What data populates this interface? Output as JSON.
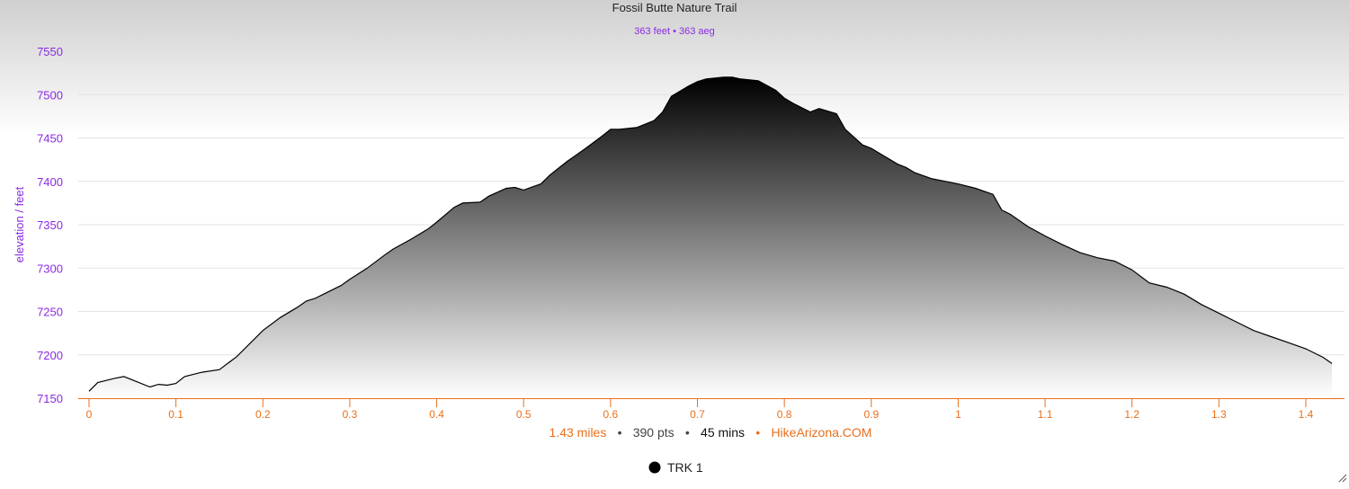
{
  "header": {
    "title": "Fossil Butte Nature Trail",
    "subtitle": "363 feet • 363 aeg"
  },
  "footer": {
    "distance": "1.43 miles",
    "sep1": "•",
    "points": "390 pts",
    "sep2": "•",
    "time": "45 mins",
    "sep3": "•",
    "site": "HikeArizona.COM"
  },
  "legend": {
    "label": "TRK 1"
  },
  "colors": {
    "accent_purple": "#8a2be2",
    "accent_orange": "#e8701c",
    "line": "#000000"
  },
  "chart_data": {
    "type": "area",
    "title": "Fossil Butte Nature Trail",
    "subtitle": "363 feet • 363 aeg",
    "xlabel": "",
    "ylabel": "elevation / feet",
    "xlim": [
      0,
      1.43
    ],
    "ylim": [
      7150,
      7550
    ],
    "x_ticks": [
      0,
      0.1,
      0.2,
      0.3,
      0.4,
      0.5,
      0.6,
      0.7,
      0.8,
      0.9,
      1,
      1.1,
      1.2,
      1.3,
      1.4
    ],
    "y_ticks": [
      7150,
      7200,
      7250,
      7300,
      7350,
      7400,
      7450,
      7500,
      7550
    ],
    "grid": true,
    "legend": "bottom-center",
    "series": [
      {
        "name": "TRK 1",
        "x": [
          0,
          0.01,
          0.03,
          0.04,
          0.05,
          0.07,
          0.08,
          0.09,
          0.1,
          0.11,
          0.13,
          0.15,
          0.17,
          0.19,
          0.2,
          0.22,
          0.24,
          0.25,
          0.26,
          0.27,
          0.29,
          0.3,
          0.32,
          0.34,
          0.35,
          0.37,
          0.39,
          0.4,
          0.42,
          0.43,
          0.45,
          0.46,
          0.48,
          0.49,
          0.5,
          0.52,
          0.53,
          0.55,
          0.57,
          0.59,
          0.6,
          0.61,
          0.63,
          0.65,
          0.66,
          0.67,
          0.69,
          0.7,
          0.71,
          0.73,
          0.74,
          0.75,
          0.77,
          0.79,
          0.8,
          0.81,
          0.83,
          0.84,
          0.86,
          0.87,
          0.89,
          0.9,
          0.91,
          0.93,
          0.94,
          0.95,
          0.97,
          0.99,
          1,
          1.02,
          1.04,
          1.05,
          1.06,
          1.08,
          1.1,
          1.12,
          1.14,
          1.16,
          1.18,
          1.2,
          1.22,
          1.24,
          1.26,
          1.28,
          1.3,
          1.32,
          1.34,
          1.36,
          1.38,
          1.4,
          1.42,
          1.43
        ],
        "values": [
          7158,
          7168,
          7173,
          7175,
          7171,
          7163,
          7166,
          7165,
          7167,
          7175,
          7180,
          7183,
          7198,
          7218,
          7228,
          7243,
          7255,
          7262,
          7265,
          7270,
          7280,
          7287,
          7300,
          7315,
          7322,
          7333,
          7345,
          7353,
          7370,
          7375,
          7376,
          7383,
          7392,
          7393,
          7390,
          7397,
          7407,
          7423,
          7437,
          7452,
          7460,
          7460,
          7462,
          7470,
          7480,
          7498,
          7510,
          7515,
          7518,
          7520,
          7520,
          7518,
          7516,
          7505,
          7496,
          7490,
          7480,
          7484,
          7478,
          7460,
          7442,
          7438,
          7432,
          7420,
          7416,
          7410,
          7403,
          7399,
          7397,
          7392,
          7385,
          7367,
          7362,
          7348,
          7337,
          7327,
          7318,
          7312,
          7308,
          7298,
          7283,
          7278,
          7270,
          7258,
          7248,
          7238,
          7228,
          7221,
          7214,
          7207,
          7197,
          7190
        ]
      }
    ]
  }
}
